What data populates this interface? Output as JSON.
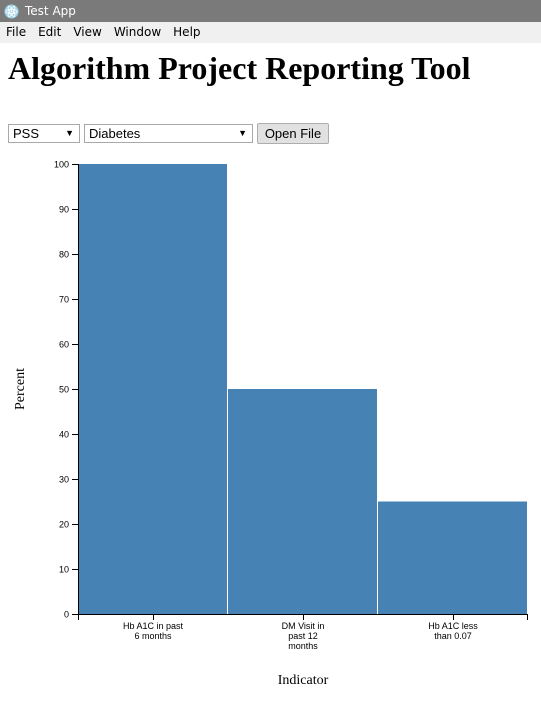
{
  "window": {
    "title": "Test App"
  },
  "menu": {
    "items": [
      "File",
      "Edit",
      "View",
      "Window",
      "Help"
    ]
  },
  "page": {
    "title": "Algorithm Project Reporting Tool"
  },
  "controls": {
    "program_select": {
      "value": "PSS"
    },
    "disease_select": {
      "value": "Diabetes"
    },
    "open_file_label": "Open File"
  },
  "colors": {
    "bar": "#4682b4",
    "titlebar": "#7a7a7a",
    "menubar": "#f0f0f0"
  },
  "icons": {
    "app": "atom-icon",
    "dropdown": "chevron-down-icon"
  },
  "chart_data": {
    "type": "bar",
    "categories": [
      [
        "Hb A1C in past",
        "6 months"
      ],
      [
        "DM Visit in",
        "past 12",
        "months"
      ],
      [
        "Hb A1C less",
        "than 0.07"
      ]
    ],
    "values": [
      100,
      50,
      25
    ],
    "xlabel": "Indicator",
    "ylabel": "Percent",
    "ylim": [
      0,
      100
    ],
    "yticks": [
      0,
      10,
      20,
      30,
      40,
      50,
      60,
      70,
      80,
      90,
      100
    ],
    "grid": false
  }
}
